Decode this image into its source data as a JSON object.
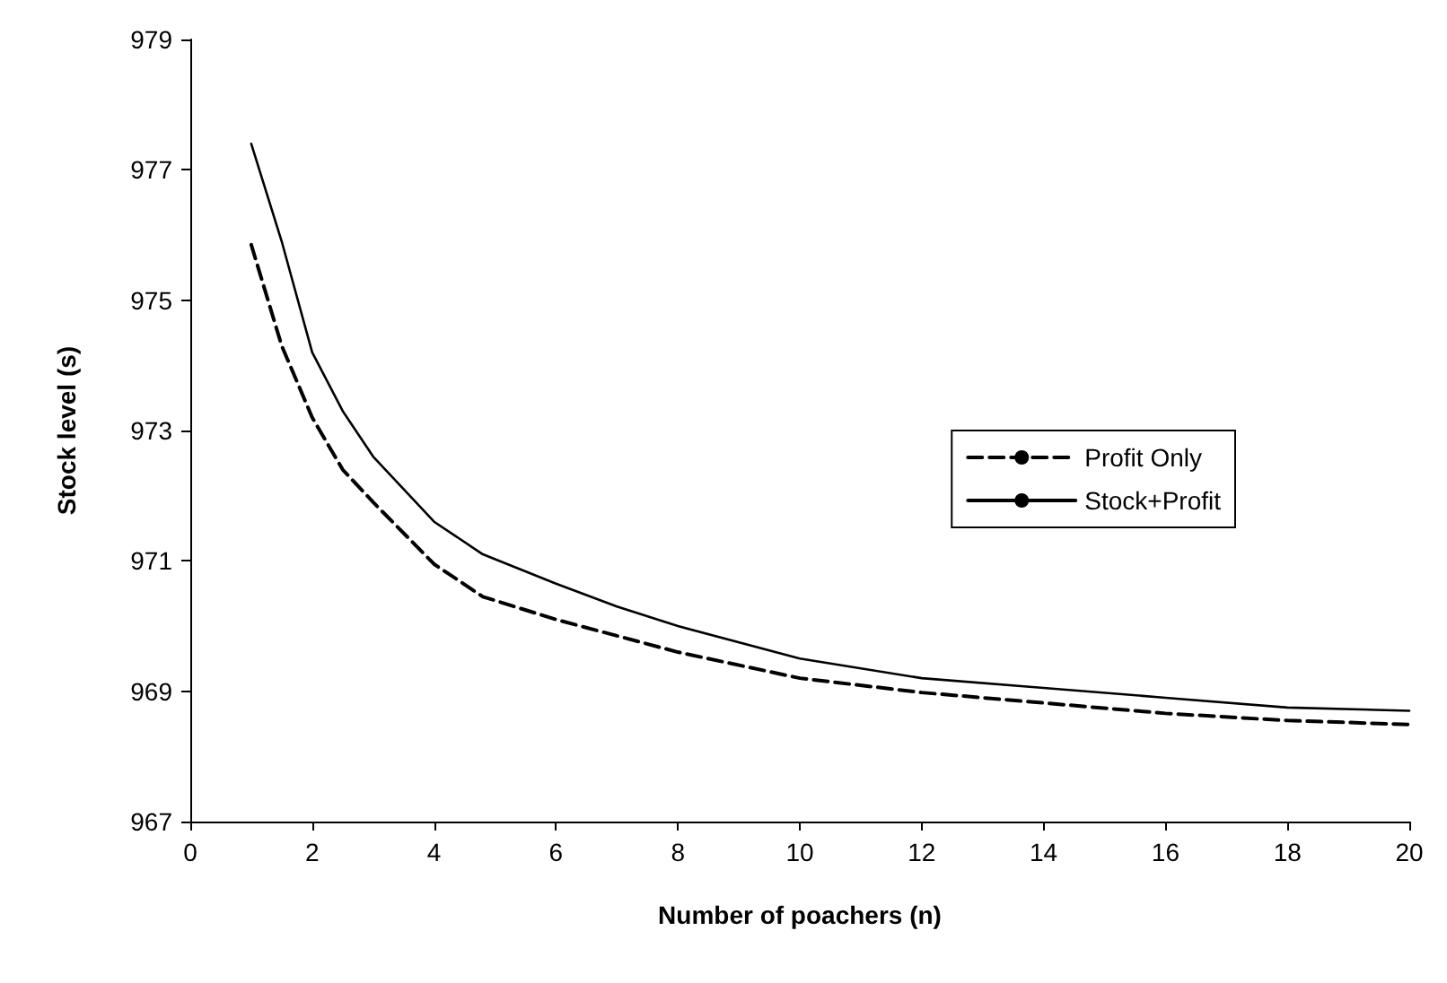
{
  "chart_data": {
    "type": "line",
    "xlabel": "Number of poachers (n)",
    "ylabel": "Stock level (s)",
    "x": [
      1,
      1.5,
      2,
      2.5,
      3,
      4,
      4.8,
      6,
      7,
      8,
      10,
      12,
      14,
      16,
      18,
      20
    ],
    "series": [
      {
        "name": "Profit Only",
        "color": "#000000",
        "line_style": "dashed",
        "values": [
          975.85,
          974.3,
          973.2,
          972.4,
          971.9,
          970.95,
          970.45,
          970.1,
          969.85,
          969.6,
          969.2,
          968.98,
          968.82,
          968.66,
          968.55,
          968.49
        ]
      },
      {
        "name": "Stock+Profit",
        "color": "#000000",
        "line_style": "solid",
        "values": [
          977.4,
          975.9,
          974.2,
          973.3,
          972.6,
          971.6,
          971.1,
          970.65,
          970.3,
          970.0,
          969.5,
          969.2,
          969.05,
          968.9,
          968.75,
          968.7
        ]
      }
    ],
    "xlim": [
      0,
      20
    ],
    "xticks": [
      0,
      2,
      4,
      6,
      8,
      10,
      12,
      14,
      16,
      18,
      20
    ],
    "ylim": [
      967,
      979
    ],
    "yticks": [
      967,
      969,
      971,
      973,
      975,
      977,
      979
    ],
    "grid": false,
    "legend": "right",
    "marker": "none"
  }
}
